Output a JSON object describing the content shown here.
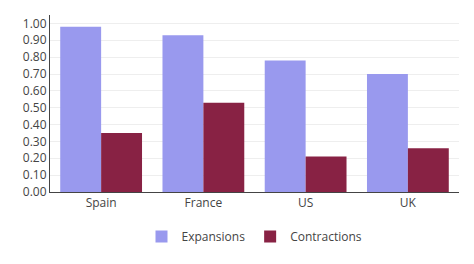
{
  "chart_data": {
    "type": "bar",
    "categories": [
      "Spain",
      "France",
      "US",
      "UK"
    ],
    "series": [
      {
        "name": "Expansions",
        "color": "#9999ee",
        "values": [
          0.98,
          0.93,
          0.78,
          0.7
        ]
      },
      {
        "name": "Contractions",
        "color": "#882244",
        "values": [
          0.35,
          0.53,
          0.21,
          0.26
        ]
      }
    ],
    "ylim": [
      0.0,
      1.05
    ],
    "yticks": [
      {
        "value": 0.0,
        "label": "0.00"
      },
      {
        "value": 0.1,
        "label": "0.10"
      },
      {
        "value": 0.2,
        "label": "0.20"
      },
      {
        "value": 0.3,
        "label": "0.30"
      },
      {
        "value": 0.4,
        "label": "0.40"
      },
      {
        "value": 0.5,
        "label": "0.50"
      },
      {
        "value": 0.6,
        "label": "0.60"
      },
      {
        "value": 0.7,
        "label": "0.70"
      },
      {
        "value": 0.8,
        "label": "0.80"
      },
      {
        "value": 0.9,
        "label": "0.90"
      },
      {
        "value": 1.0,
        "label": "1.00"
      }
    ],
    "grid": true,
    "legend": "bottom"
  }
}
